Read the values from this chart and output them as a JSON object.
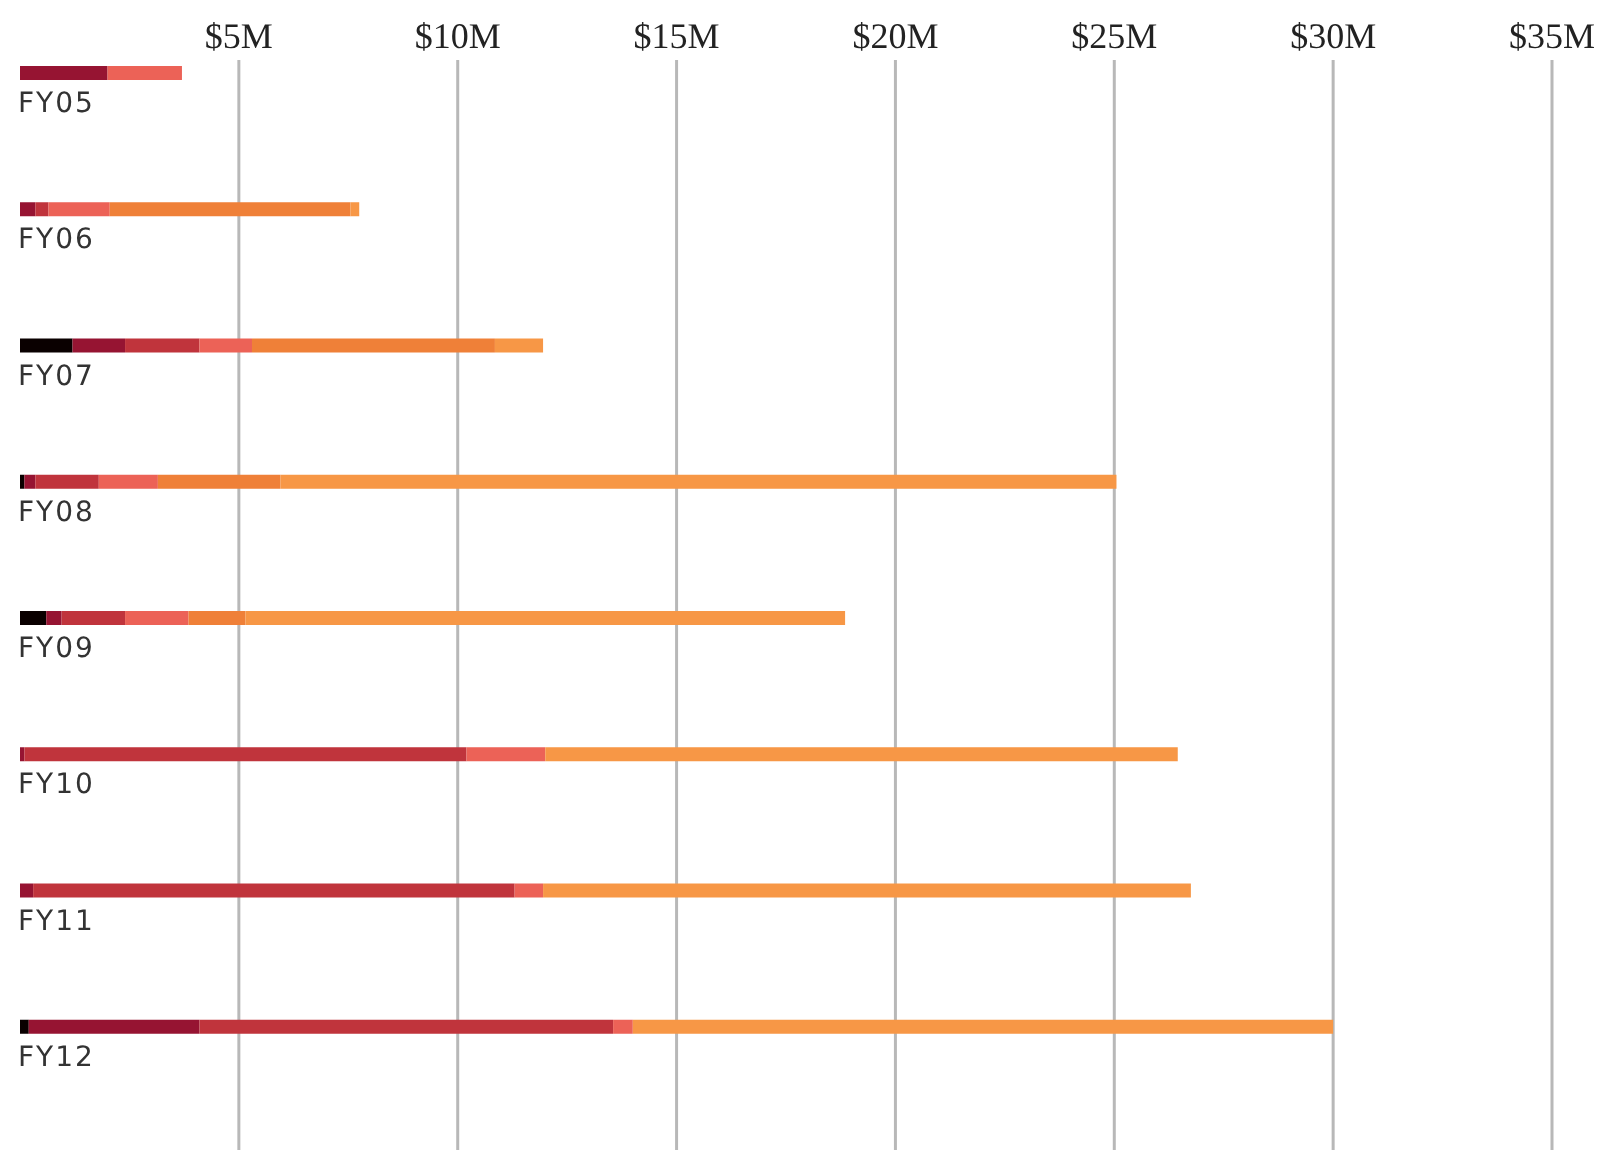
{
  "chart_data": {
    "type": "bar",
    "orientation": "horizontal",
    "stacked": true,
    "grid": "x",
    "categories": [
      "FY05",
      "FY06",
      "FY07",
      "FY08",
      "FY09",
      "FY10",
      "FY11",
      "FY12"
    ],
    "series": [
      {
        "color": "#0a0000",
        "values": [
          null,
          null,
          1.2,
          0.1,
          0.6,
          null,
          null,
          0.2
        ]
      },
      {
        "color": "#961432",
        "values": [
          2.0,
          0.35,
          1.2,
          0.25,
          0.35,
          0.1,
          0.3,
          3.9
        ]
      },
      {
        "color": "#c0343c",
        "values": [
          null,
          0.3,
          1.7,
          1.45,
          1.45,
          10.1,
          11.0,
          9.45
        ]
      },
      {
        "color": "#ec6257",
        "values": [
          1.7,
          1.4,
          1.2,
          1.35,
          1.45,
          1.8,
          0.65,
          0.45
        ]
      },
      {
        "color": "#ef8038",
        "values": [
          null,
          5.5,
          5.55,
          2.8,
          1.3,
          null,
          null,
          null
        ]
      },
      {
        "color": "#f79746",
        "values": [
          null,
          0.2,
          1.1,
          19.1,
          13.7,
          14.45,
          14.8,
          16.0
        ]
      }
    ],
    "xlim": [
      0,
      35
    ],
    "xticks": [
      {
        "value": 5,
        "label": "$5M"
      },
      {
        "value": 10,
        "label": "$10M"
      },
      {
        "value": 15,
        "label": "$15M"
      },
      {
        "value": 20,
        "label": "$20M"
      },
      {
        "value": 25,
        "label": "$25M"
      },
      {
        "value": 30,
        "label": "$30M"
      },
      {
        "value": 35,
        "label": "$35M"
      }
    ]
  }
}
